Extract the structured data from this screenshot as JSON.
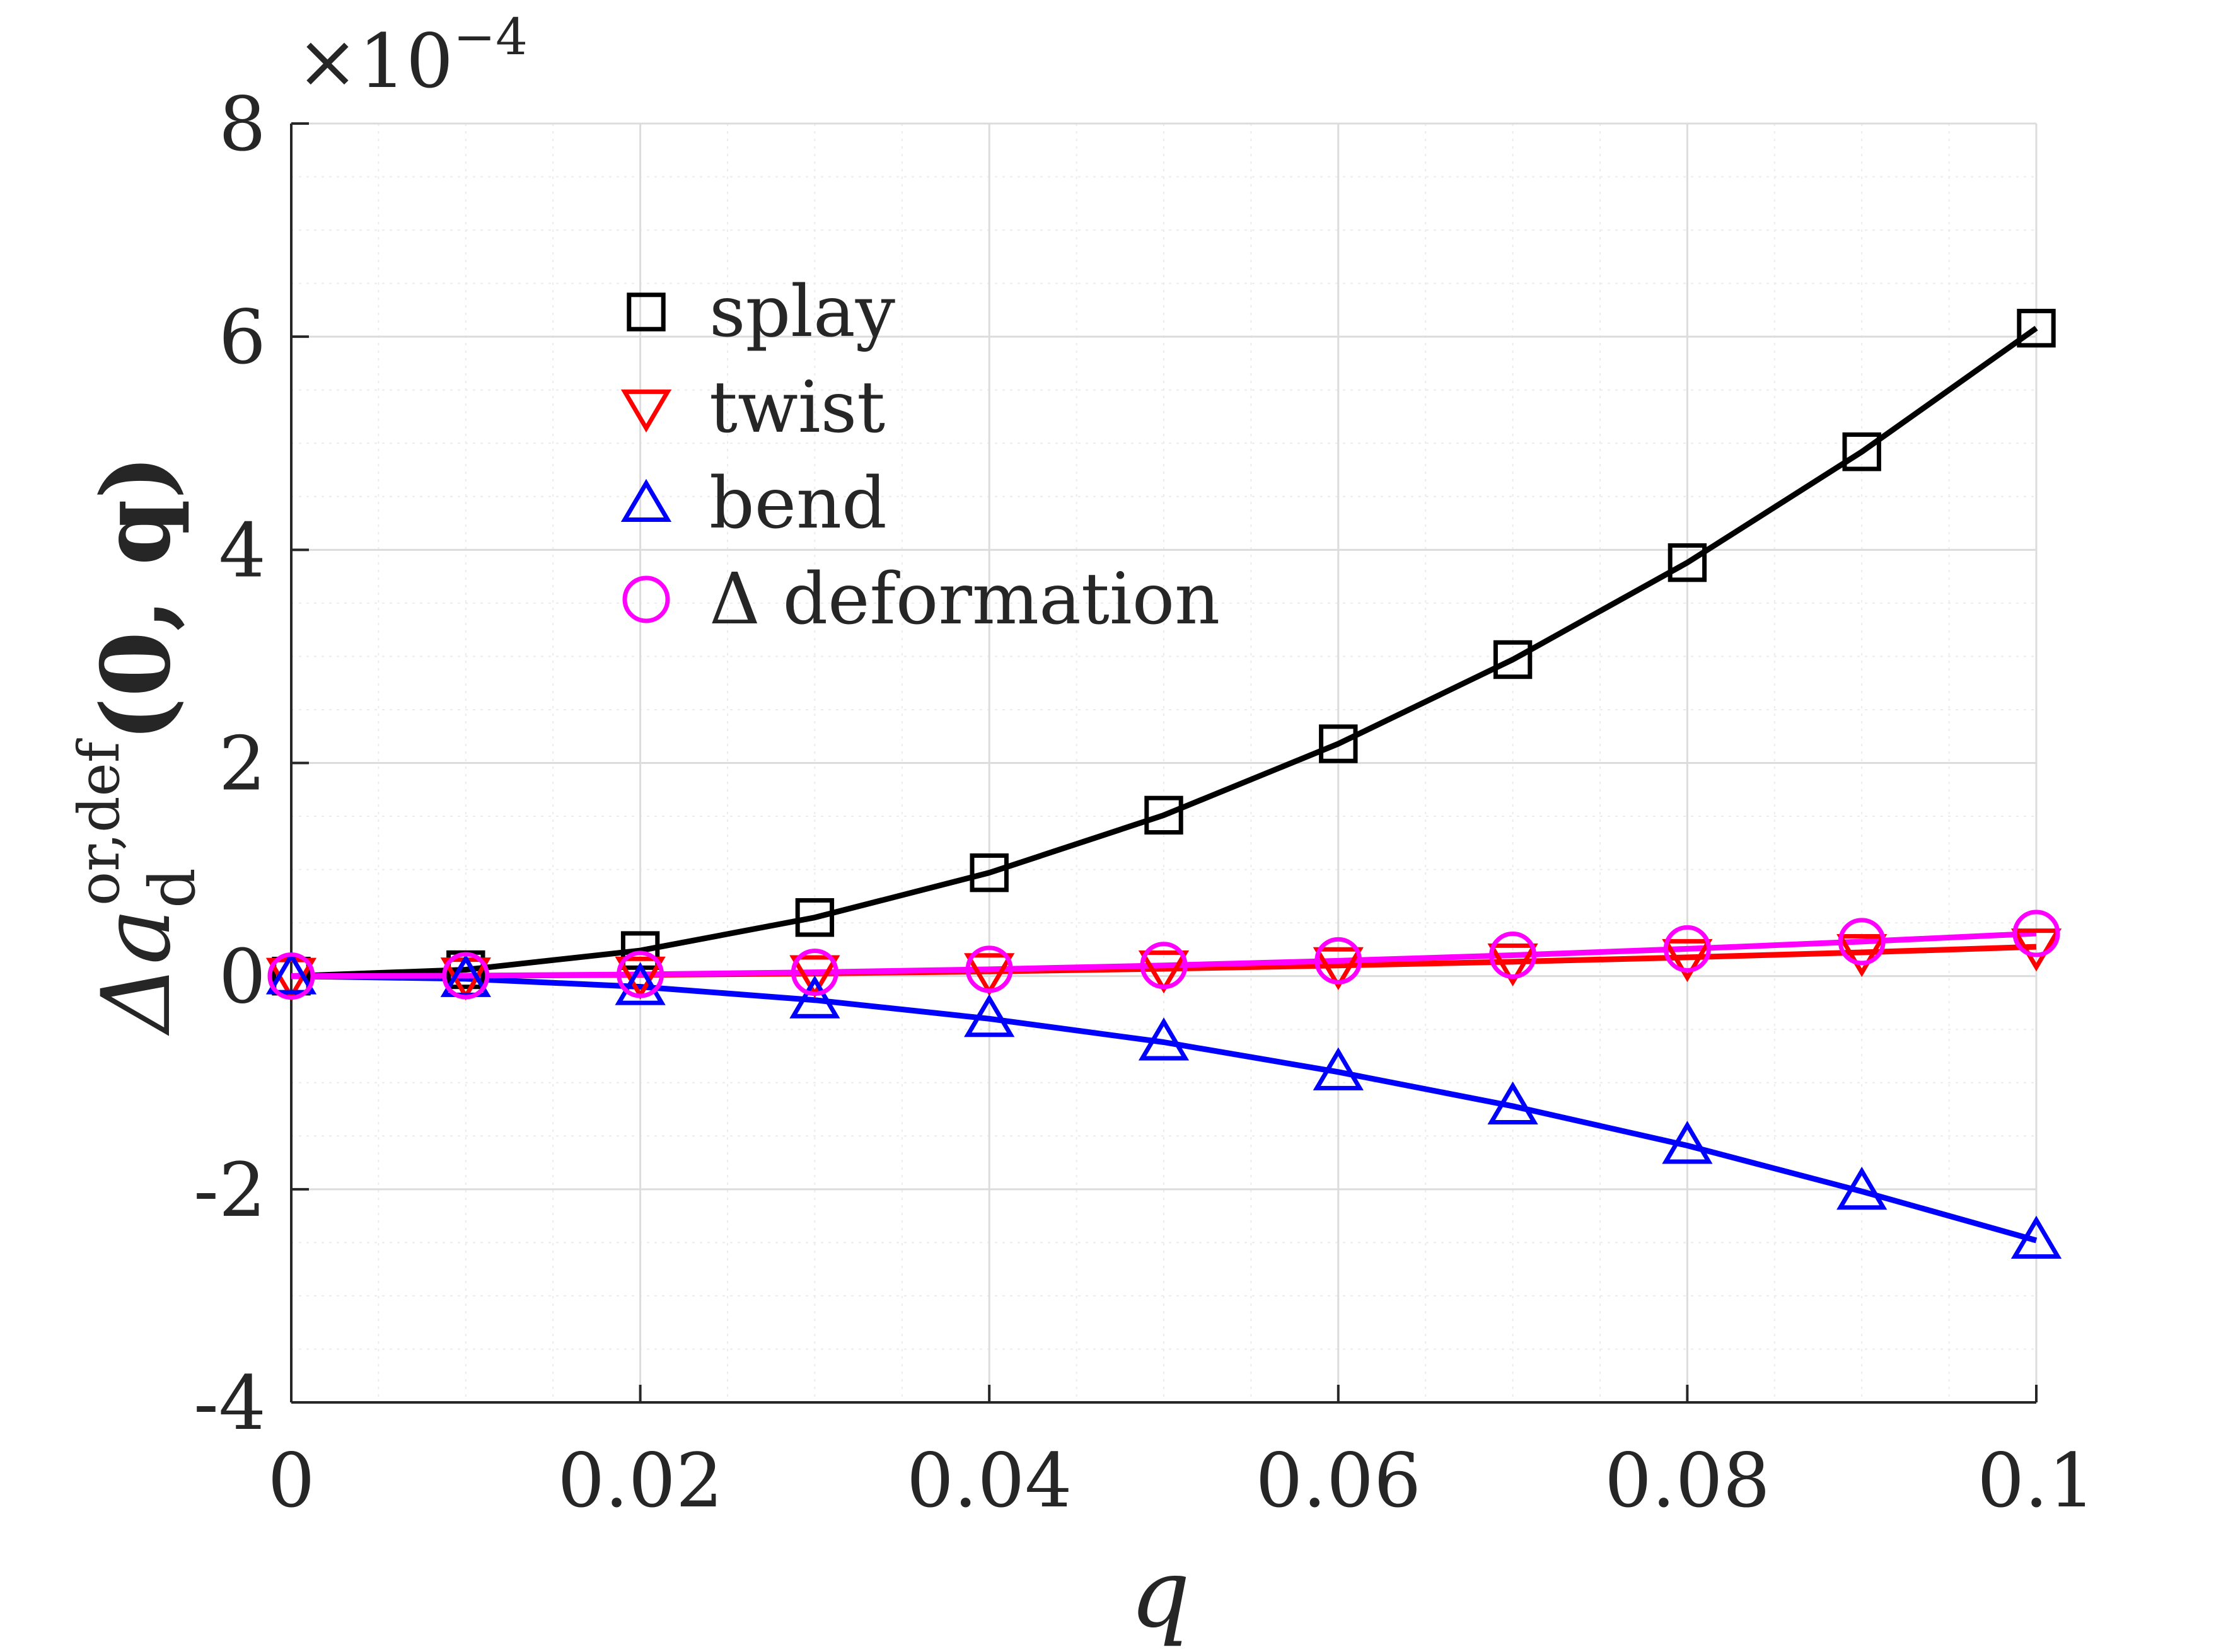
{
  "chart_data": {
    "type": "line",
    "xlabel": "q",
    "ylabel": {
      "prefix": "Δa",
      "superscript": "or,def",
      "subscript": "d",
      "args": "(0, q)"
    },
    "y_multiplier": "×10",
    "y_multiplier_exponent": "−4",
    "xlim": [
      0,
      0.1
    ],
    "ylim": [
      -4,
      8
    ],
    "y_scale_note": "values in units of 1e-4",
    "x_ticks": [
      0,
      0.02,
      0.04,
      0.06,
      0.08,
      0.1
    ],
    "x_tick_labels": [
      "0",
      "0.02",
      "0.04",
      "0.06",
      "0.08",
      "0.1"
    ],
    "y_ticks": [
      -4,
      -2,
      0,
      2,
      4,
      6,
      8
    ],
    "y_tick_labels": [
      "-4",
      "-2",
      "0",
      "2",
      "4",
      "6",
      "8"
    ],
    "grid": true,
    "minor_grid": true,
    "legend_placement": "upper-left-center",
    "x": [
      0,
      0.01,
      0.02,
      0.03,
      0.04,
      0.05,
      0.06,
      0.07,
      0.08,
      0.09,
      0.1
    ],
    "series": [
      {
        "name": "splay",
        "marker": "square",
        "color": "#000000",
        "values": [
          0,
          0.06,
          0.24,
          0.55,
          0.97,
          1.51,
          2.18,
          2.97,
          3.88,
          4.92,
          6.08
        ]
      },
      {
        "name": "twist",
        "marker": "triangle-down",
        "color": "#ff0000",
        "values": [
          0,
          0.003,
          0.011,
          0.025,
          0.044,
          0.069,
          0.1,
          0.135,
          0.176,
          0.223,
          0.275
        ]
      },
      {
        "name": "bend",
        "marker": "triangle-up",
        "color": "#0000ff",
        "values": [
          0,
          -0.025,
          -0.1,
          -0.225,
          -0.4,
          -0.62,
          -0.9,
          -1.22,
          -1.59,
          -2.02,
          -2.48
        ]
      },
      {
        "name": "Δ deformation",
        "marker": "circle",
        "color": "#ff00ff",
        "values": [
          0,
          0.004,
          0.016,
          0.036,
          0.064,
          0.1,
          0.144,
          0.196,
          0.256,
          0.324,
          0.4
        ]
      }
    ]
  }
}
